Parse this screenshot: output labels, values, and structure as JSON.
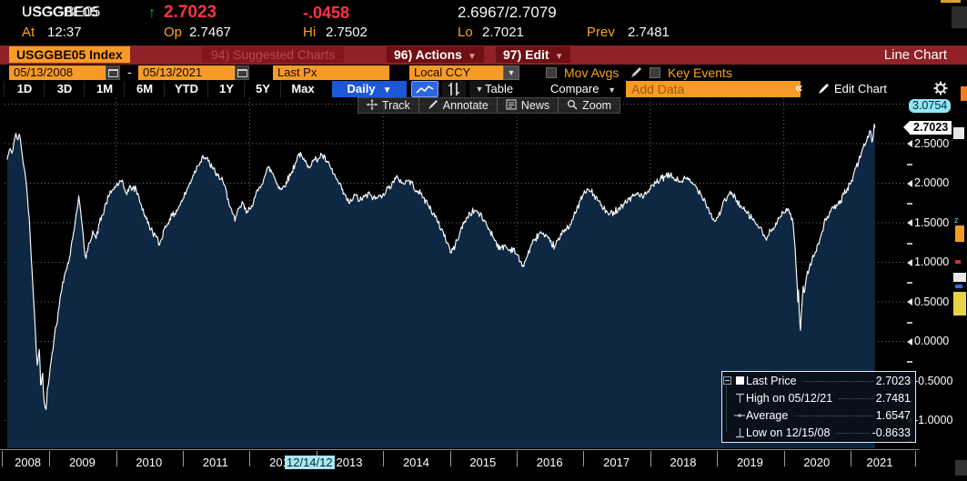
{
  "quote": {
    "ticker": "USGGBE05",
    "arrow": "↑",
    "price": "2.7023",
    "change": "-.0458",
    "bid_ask": "2.6967/2.7079",
    "at_label": "At",
    "at_value": "12:37",
    "op_label": "Op",
    "op_value": "2.7467",
    "hi_label": "Hi",
    "hi_value": "2.7502",
    "lo_label": "Lo",
    "lo_value": "2.7021",
    "prev_label": "Prev",
    "prev_value": "2.7481"
  },
  "toolbar": {
    "security": "USGGBE05 Index",
    "suggested": "94) Suggested Charts",
    "actions": "96) Actions",
    "edit": "97) Edit",
    "chart_type": "Line Chart"
  },
  "fields": {
    "date_from": "05/13/2008",
    "date_to": "05/13/2021",
    "price_field": "Last Px",
    "currency": "Local CCY",
    "mov_avgs": "Mov Avgs",
    "key_events": "Key Events"
  },
  "periods": {
    "tabs": [
      "1D",
      "3D",
      "1M",
      "6M",
      "YTD",
      "1Y",
      "5Y",
      "Max"
    ],
    "frequency": "Daily",
    "table_label": "Table",
    "compare_label": "Compare",
    "add_data_placeholder": "Add Data",
    "collapse_label": "«",
    "edit_chart_label": "Edit Chart"
  },
  "mini_toolbar": {
    "items": [
      "Track",
      "Annotate",
      "News",
      "Zoom"
    ]
  },
  "legend": {
    "items": [
      {
        "icon": "square",
        "label": "Last Price",
        "value": "2.7023"
      },
      {
        "icon": "high",
        "label": "High on 05/12/21",
        "value": "2.7481"
      },
      {
        "icon": "avg",
        "label": "Average",
        "value": "1.6547"
      },
      {
        "icon": "low",
        "label": "Low on 12/15/08",
        "value": "-0.8633"
      }
    ]
  },
  "colors": {
    "amber": "#f79b26",
    "bar_red": "#8f2127",
    "price_red": "#ff3340",
    "arrow_green": "#00c34e",
    "daily_blue": "#1c58d6",
    "fill_navy": "#0e2742",
    "line_white": "#ffffff",
    "cyan_badge": "#8ee7f2"
  },
  "chart_data": {
    "type": "line",
    "title": "USGGBE05 Index - Last Px, Daily, 05/13/2008 - 05/13/2021",
    "x_range": [
      2008.37,
      2021.37
    ],
    "x_tick_years": [
      2008,
      2009,
      2010,
      2011,
      2012,
      2013,
      2014,
      2015,
      2016,
      2017,
      2018,
      2019,
      2020,
      2021
    ],
    "x_gridline_years": [
      2010,
      2012,
      2014,
      2016,
      2018,
      2020
    ],
    "event_tag": "12/14/12",
    "y_axis": {
      "top_value": 3.0754,
      "bottom_value": -1.35,
      "major_ticks": [
        3.0,
        2.5,
        2.0,
        1.5,
        1.0,
        0.5,
        0.0,
        -0.5,
        -1.0
      ],
      "labeled_ticks": [
        2.5,
        2.0,
        1.5,
        1.0,
        0.5,
        0.0,
        -0.5,
        -1.0
      ],
      "minor_step": 0.25,
      "decimals": 4
    },
    "last_price": 2.7023,
    "top_axis_value": 3.0754,
    "stats": {
      "last": 2.7023,
      "high_date": "05/12/21",
      "high": 2.7481,
      "average": 1.6547,
      "low_date": "12/15/08",
      "low": -0.8633
    },
    "jitter": 0.045,
    "series": [
      {
        "name": "Last Price",
        "color": "#ffffff",
        "points": [
          [
            2008.37,
            2.3
          ],
          [
            2008.4,
            2.42
          ],
          [
            2008.44,
            2.38
          ],
          [
            2008.47,
            2.52
          ],
          [
            2008.5,
            2.63
          ],
          [
            2008.53,
            2.55
          ],
          [
            2008.55,
            2.62
          ],
          [
            2008.58,
            2.45
          ],
          [
            2008.62,
            2.2
          ],
          [
            2008.66,
            1.95
          ],
          [
            2008.7,
            1.55
          ],
          [
            2008.73,
            1.05
          ],
          [
            2008.76,
            0.6
          ],
          [
            2008.79,
            0.15
          ],
          [
            2008.82,
            -0.3
          ],
          [
            2008.85,
            -0.1
          ],
          [
            2008.87,
            -0.55
          ],
          [
            2008.9,
            -0.4
          ],
          [
            2008.92,
            -0.75
          ],
          [
            2008.95,
            -0.86
          ],
          [
            2008.97,
            -0.6
          ],
          [
            2009.0,
            -0.45
          ],
          [
            2009.04,
            -0.15
          ],
          [
            2009.08,
            0.1
          ],
          [
            2009.12,
            0.25
          ],
          [
            2009.16,
            0.55
          ],
          [
            2009.2,
            0.75
          ],
          [
            2009.25,
            0.9
          ],
          [
            2009.3,
            1.05
          ],
          [
            2009.35,
            1.3
          ],
          [
            2009.4,
            1.6
          ],
          [
            2009.44,
            1.84
          ],
          [
            2009.48,
            1.55
          ],
          [
            2009.52,
            1.2
          ],
          [
            2009.55,
            1.05
          ],
          [
            2009.6,
            1.25
          ],
          [
            2009.65,
            1.4
          ],
          [
            2009.7,
            1.3
          ],
          [
            2009.75,
            1.5
          ],
          [
            2009.8,
            1.6
          ],
          [
            2009.85,
            1.75
          ],
          [
            2009.9,
            1.85
          ],
          [
            2009.95,
            1.92
          ],
          [
            2010.0,
            1.97
          ],
          [
            2010.08,
            2.02
          ],
          [
            2010.15,
            1.88
          ],
          [
            2010.22,
            1.95
          ],
          [
            2010.3,
            1.92
          ],
          [
            2010.38,
            1.72
          ],
          [
            2010.45,
            1.55
          ],
          [
            2010.52,
            1.42
          ],
          [
            2010.6,
            1.32
          ],
          [
            2010.65,
            1.22
          ],
          [
            2010.72,
            1.42
          ],
          [
            2010.8,
            1.55
          ],
          [
            2010.88,
            1.62
          ],
          [
            2010.95,
            1.72
          ],
          [
            2011.0,
            1.8
          ],
          [
            2011.08,
            1.95
          ],
          [
            2011.15,
            2.1
          ],
          [
            2011.22,
            2.22
          ],
          [
            2011.3,
            2.35
          ],
          [
            2011.38,
            2.28
          ],
          [
            2011.45,
            2.18
          ],
          [
            2011.52,
            2.1
          ],
          [
            2011.6,
            2.02
          ],
          [
            2011.68,
            1.8
          ],
          [
            2011.74,
            1.62
          ],
          [
            2011.78,
            1.52
          ],
          [
            2011.84,
            1.68
          ],
          [
            2011.9,
            1.75
          ],
          [
            2011.95,
            1.62
          ],
          [
            2012.0,
            1.68
          ],
          [
            2012.08,
            1.82
          ],
          [
            2012.15,
            1.95
          ],
          [
            2012.22,
            2.08
          ],
          [
            2012.28,
            2.2
          ],
          [
            2012.35,
            2.12
          ],
          [
            2012.42,
            1.98
          ],
          [
            2012.48,
            1.92
          ],
          [
            2012.55,
            2.02
          ],
          [
            2012.62,
            2.12
          ],
          [
            2012.68,
            2.25
          ],
          [
            2012.74,
            2.38
          ],
          [
            2012.8,
            2.3
          ],
          [
            2012.88,
            2.22
          ],
          [
            2012.95,
            2.28
          ],
          [
            2013.0,
            2.3
          ],
          [
            2013.08,
            2.36
          ],
          [
            2013.15,
            2.28
          ],
          [
            2013.22,
            2.18
          ],
          [
            2013.3,
            2.05
          ],
          [
            2013.38,
            1.92
          ],
          [
            2013.45,
            1.8
          ],
          [
            2013.5,
            1.75
          ],
          [
            2013.58,
            1.85
          ],
          [
            2013.65,
            1.78
          ],
          [
            2013.72,
            1.83
          ],
          [
            2013.8,
            1.86
          ],
          [
            2013.88,
            1.8
          ],
          [
            2013.95,
            1.84
          ],
          [
            2014.0,
            1.87
          ],
          [
            2014.08,
            1.94
          ],
          [
            2014.15,
            2.02
          ],
          [
            2014.22,
            2.07
          ],
          [
            2014.3,
            2.0
          ],
          [
            2014.38,
            2.04
          ],
          [
            2014.45,
            1.97
          ],
          [
            2014.52,
            1.9
          ],
          [
            2014.6,
            1.82
          ],
          [
            2014.68,
            1.72
          ],
          [
            2014.75,
            1.62
          ],
          [
            2014.82,
            1.5
          ],
          [
            2014.9,
            1.38
          ],
          [
            2014.96,
            1.25
          ],
          [
            2015.02,
            1.12
          ],
          [
            2015.08,
            1.22
          ],
          [
            2015.15,
            1.38
          ],
          [
            2015.22,
            1.52
          ],
          [
            2015.3,
            1.62
          ],
          [
            2015.38,
            1.66
          ],
          [
            2015.45,
            1.6
          ],
          [
            2015.52,
            1.52
          ],
          [
            2015.6,
            1.4
          ],
          [
            2015.68,
            1.28
          ],
          [
            2015.75,
            1.16
          ],
          [
            2015.82,
            1.22
          ],
          [
            2015.88,
            1.15
          ],
          [
            2015.95,
            1.18
          ],
          [
            2016.0,
            1.1
          ],
          [
            2016.08,
            0.95
          ],
          [
            2016.13,
            1.02
          ],
          [
            2016.2,
            1.18
          ],
          [
            2016.28,
            1.3
          ],
          [
            2016.35,
            1.38
          ],
          [
            2016.42,
            1.32
          ],
          [
            2016.5,
            1.26
          ],
          [
            2016.57,
            1.2
          ],
          [
            2016.65,
            1.32
          ],
          [
            2016.72,
            1.42
          ],
          [
            2016.8,
            1.48
          ],
          [
            2016.88,
            1.62
          ],
          [
            2016.95,
            1.78
          ],
          [
            2017.0,
            1.86
          ],
          [
            2017.08,
            1.92
          ],
          [
            2017.15,
            1.86
          ],
          [
            2017.22,
            1.78
          ],
          [
            2017.3,
            1.68
          ],
          [
            2017.38,
            1.6
          ],
          [
            2017.45,
            1.64
          ],
          [
            2017.52,
            1.68
          ],
          [
            2017.6,
            1.74
          ],
          [
            2017.68,
            1.8
          ],
          [
            2017.75,
            1.84
          ],
          [
            2017.82,
            1.88
          ],
          [
            2017.9,
            1.82
          ],
          [
            2017.95,
            1.88
          ],
          [
            2018.0,
            1.92
          ],
          [
            2018.08,
            2.0
          ],
          [
            2018.15,
            2.05
          ],
          [
            2018.22,
            2.08
          ],
          [
            2018.3,
            2.1
          ],
          [
            2018.38,
            2.05
          ],
          [
            2018.45,
            2.02
          ],
          [
            2018.52,
            2.06
          ],
          [
            2018.6,
            2.02
          ],
          [
            2018.68,
            1.96
          ],
          [
            2018.75,
            1.88
          ],
          [
            2018.82,
            1.78
          ],
          [
            2018.9,
            1.62
          ],
          [
            2018.96,
            1.52
          ],
          [
            2019.02,
            1.58
          ],
          [
            2019.08,
            1.72
          ],
          [
            2019.15,
            1.82
          ],
          [
            2019.22,
            1.88
          ],
          [
            2019.3,
            1.78
          ],
          [
            2019.38,
            1.68
          ],
          [
            2019.45,
            1.62
          ],
          [
            2019.52,
            1.56
          ],
          [
            2019.6,
            1.48
          ],
          [
            2019.68,
            1.38
          ],
          [
            2019.74,
            1.28
          ],
          [
            2019.8,
            1.4
          ],
          [
            2019.88,
            1.5
          ],
          [
            2019.95,
            1.58
          ],
          [
            2020.0,
            1.62
          ],
          [
            2020.06,
            1.68
          ],
          [
            2020.1,
            1.62
          ],
          [
            2020.14,
            1.48
          ],
          [
            2020.17,
            1.18
          ],
          [
            2020.19,
            0.85
          ],
          [
            2020.21,
            0.5
          ],
          [
            2020.22,
            0.65
          ],
          [
            2020.23,
            0.4
          ],
          [
            2020.25,
            0.14
          ],
          [
            2020.27,
            0.45
          ],
          [
            2020.29,
            0.7
          ],
          [
            2020.31,
            0.62
          ],
          [
            2020.34,
            0.82
          ],
          [
            2020.38,
            0.92
          ],
          [
            2020.42,
            1.02
          ],
          [
            2020.46,
            1.1
          ],
          [
            2020.5,
            1.22
          ],
          [
            2020.55,
            1.32
          ],
          [
            2020.6,
            1.48
          ],
          [
            2020.65,
            1.58
          ],
          [
            2020.7,
            1.64
          ],
          [
            2020.75,
            1.68
          ],
          [
            2020.8,
            1.72
          ],
          [
            2020.85,
            1.78
          ],
          [
            2020.9,
            1.86
          ],
          [
            2020.95,
            1.94
          ],
          [
            2021.0,
            1.99
          ],
          [
            2021.04,
            2.1
          ],
          [
            2021.08,
            2.2
          ],
          [
            2021.12,
            2.28
          ],
          [
            2021.16,
            2.38
          ],
          [
            2021.2,
            2.5
          ],
          [
            2021.24,
            2.54
          ],
          [
            2021.27,
            2.58
          ],
          [
            2021.3,
            2.66
          ],
          [
            2021.32,
            2.52
          ],
          [
            2021.34,
            2.62
          ],
          [
            2021.355,
            2.7481
          ],
          [
            2021.365,
            2.7023
          ]
        ]
      }
    ]
  }
}
